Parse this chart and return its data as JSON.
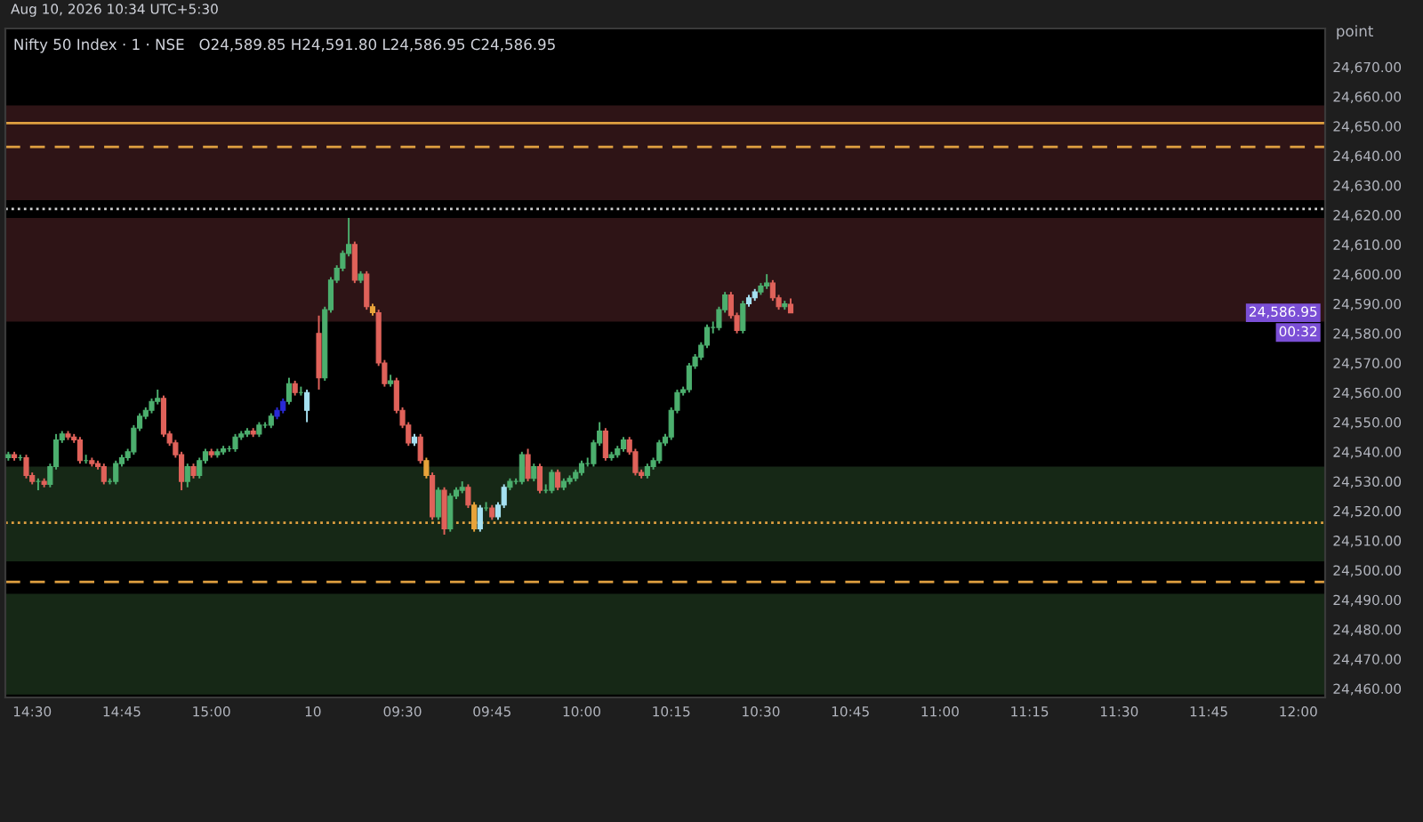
{
  "chart_data": {
    "type": "candlestick",
    "title": "Nifty 50 Index · 1 · NSE   O24,589.85 H24,591.80 L24,586.95 C24,586.95",
    "subtitle": "Aug 10, 2026 10:34 UTC+5:30",
    "ylabel": "point",
    "categories": [
      null,
      null,
      null,
      null,
      "14:30",
      null,
      null,
      null,
      null,
      null,
      null,
      null,
      null,
      null,
      null,
      null,
      null,
      null,
      null,
      "14:45",
      null,
      null,
      null,
      null,
      null,
      null,
      null,
      null,
      null,
      null,
      null,
      null,
      null,
      null,
      "15:00",
      null,
      null,
      null,
      null,
      null,
      null,
      null,
      null,
      null,
      null,
      null,
      null,
      null,
      null,
      null,
      null,
      "10",
      null,
      null,
      null,
      null,
      null,
      null,
      null,
      null,
      null,
      null,
      null,
      null,
      null,
      null,
      "09:30",
      null,
      null,
      null,
      null,
      null,
      null,
      null,
      null,
      null,
      null,
      null,
      null,
      null,
      null,
      "09:45",
      null,
      null,
      null,
      null,
      null,
      null,
      null,
      null,
      null,
      null,
      null,
      null,
      null,
      null,
      "10:00",
      null,
      null,
      null,
      null,
      null,
      null,
      null,
      null,
      null,
      null,
      null,
      null,
      null,
      null,
      "10:15",
      null,
      null,
      null,
      null,
      null,
      null,
      null,
      null,
      null,
      null,
      null,
      null,
      null,
      null,
      "10:30",
      null,
      null,
      null,
      null,
      null,
      null,
      null,
      null,
      null,
      null,
      null,
      null,
      null,
      null,
      "10:45",
      null,
      null,
      null,
      null,
      null,
      null,
      null,
      null,
      null,
      null,
      null,
      null,
      null,
      null,
      "11:00",
      null,
      null,
      null,
      null,
      null,
      null,
      null,
      null,
      null,
      null,
      null,
      null,
      null,
      null,
      "11:15",
      null,
      null,
      null,
      null,
      null,
      null,
      null,
      null,
      null,
      null,
      null,
      null,
      null,
      null,
      "11:30",
      null,
      null,
      null,
      null,
      null,
      null,
      null,
      null,
      null,
      null,
      null,
      null,
      null,
      null,
      "11:45",
      null,
      null,
      null,
      null,
      null,
      null,
      null,
      null,
      null,
      null,
      null,
      null,
      null,
      null,
      "12:00",
      null,
      null,
      null,
      null
    ],
    "ohlc": [
      [
        24538,
        24540,
        24537,
        24539
      ],
      [
        24539,
        24540,
        24537,
        24538
      ],
      [
        24538,
        24539,
        24537,
        24538
      ],
      [
        24538,
        24539,
        24531,
        24532
      ],
      [
        24532,
        24533,
        24529,
        24530
      ],
      [
        24530,
        24531,
        24527,
        24530
      ],
      [
        24530,
        24531,
        24528,
        24529
      ],
      [
        24529,
        24536,
        24528,
        24535
      ],
      [
        24535,
        24546,
        24534,
        24544
      ],
      [
        24544,
        24547,
        24543,
        24546
      ],
      [
        24546,
        24547,
        24544,
        24545
      ],
      [
        24545,
        24546,
        24543,
        24544
      ],
      [
        24544,
        24545,
        24536,
        24537
      ],
      [
        24537,
        24539,
        24536,
        24537
      ],
      [
        24537,
        24538,
        24535,
        24536
      ],
      [
        24536,
        24537,
        24534,
        24535
      ],
      [
        24535,
        24536,
        24529,
        24530
      ],
      [
        24530,
        24531,
        24529,
        24530
      ],
      [
        24530,
        24537,
        24529,
        24536
      ],
      [
        24536,
        24539,
        24535,
        24538
      ],
      [
        24538,
        24541,
        24537,
        24540
      ],
      [
        24540,
        24549,
        24539,
        24548
      ],
      [
        24548,
        24553,
        24547,
        24552
      ],
      [
        24552,
        24555,
        24551,
        24554
      ],
      [
        24554,
        24558,
        24553,
        24557
      ],
      [
        24557,
        24561,
        24556,
        24558
      ],
      [
        24558,
        24559,
        24545,
        24546
      ],
      [
        24546,
        24547,
        24542,
        24543
      ],
      [
        24543,
        24544,
        24538,
        24539
      ],
      [
        24539,
        24540,
        24527,
        24530
      ],
      [
        24530,
        24536,
        24528,
        24535
      ],
      [
        24535,
        24536,
        24531,
        24532
      ],
      [
        24532,
        24538,
        24531,
        24537
      ],
      [
        24537,
        24541,
        24536,
        24540
      ],
      [
        24540,
        24541,
        24538,
        24539
      ],
      [
        24539,
        24541,
        24538,
        24540
      ],
      [
        24540,
        24542,
        24539,
        24541
      ],
      [
        24541,
        24542,
        24540,
        24541
      ],
      [
        24541,
        24546,
        24540,
        24545
      ],
      [
        24545,
        24547,
        24544,
        24546
      ],
      [
        24546,
        24548,
        24545,
        24547
      ],
      [
        24547,
        24548,
        24545,
        24546
      ],
      [
        24546,
        24550,
        24545,
        24549
      ],
      [
        24549,
        24550,
        24548,
        24549
      ],
      [
        24549,
        24553,
        24548,
        24552
      ],
      [
        24552,
        24555,
        24551,
        24554
      ],
      [
        24554,
        24558,
        24553,
        24557
      ],
      [
        24557,
        24565,
        24556,
        24563
      ],
      [
        24563,
        24564,
        24559,
        24560
      ],
      [
        24560,
        24562,
        24559,
        24560
      ],
      [
        24560,
        24561,
        24550,
        24554
      ],
      null,
      [
        24580,
        24586,
        24561,
        24565
      ],
      [
        24565,
        24589,
        24564,
        24588
      ],
      [
        24588,
        24599,
        24587,
        24598
      ],
      [
        24598,
        24603,
        24597,
        24602
      ],
      [
        24602,
        24608,
        24601,
        24607
      ],
      [
        24607,
        24619,
        24606,
        24610
      ],
      [
        24610,
        24611,
        24597,
        24598
      ],
      [
        24598,
        24601,
        24597,
        24600
      ],
      [
        24600,
        24601,
        24588,
        24589
      ],
      [
        24589,
        24590,
        24586,
        24587
      ],
      [
        24587,
        24588,
        24569,
        24570
      ],
      [
        24570,
        24571,
        24562,
        24563
      ],
      [
        24563,
        24566,
        24562,
        24564
      ],
      [
        24564,
        24565,
        24553,
        24554
      ],
      [
        24554,
        24555,
        24548,
        24549
      ],
      [
        24549,
        24550,
        24542,
        24543
      ],
      [
        24543,
        24546,
        24542,
        24545
      ],
      [
        24545,
        24546,
        24536,
        24537
      ],
      [
        24537,
        24538,
        24531,
        24532
      ],
      [
        24532,
        24533,
        24517,
        24518
      ],
      [
        24518,
        24528,
        24517,
        24527
      ],
      [
        24527,
        24528,
        24512,
        24514
      ],
      [
        24514,
        24526,
        24513,
        24525
      ],
      [
        24525,
        24528,
        24524,
        24527
      ],
      [
        24527,
        24530,
        24526,
        24528
      ],
      [
        24528,
        24529,
        24521,
        24522
      ],
      [
        24522,
        24523,
        24513,
        24514
      ],
      [
        24514,
        24522,
        24513,
        24521
      ],
      [
        24521,
        24523,
        24520,
        24521
      ],
      [
        24521,
        24522,
        24517,
        24518
      ],
      [
        24518,
        24523,
        24517,
        24522
      ],
      [
        24522,
        24529,
        24521,
        24528
      ],
      [
        24528,
        24531,
        24527,
        24530
      ],
      [
        24530,
        24531,
        24529,
        24530
      ],
      [
        24530,
        24540,
        24529,
        24539
      ],
      [
        24539,
        24541,
        24530,
        24531
      ],
      [
        24531,
        24536,
        24530,
        24535
      ],
      [
        24535,
        24536,
        24526,
        24527
      ],
      [
        24527,
        24529,
        24526,
        24527
      ],
      [
        24527,
        24534,
        24526,
        24533
      ],
      [
        24533,
        24534,
        24527,
        24528
      ],
      [
        24528,
        24531,
        24527,
        24530
      ],
      [
        24530,
        24532,
        24529,
        24531
      ],
      [
        24531,
        24534,
        24530,
        24533
      ],
      [
        24533,
        24537,
        24532,
        24536
      ],
      [
        24536,
        24538,
        24535,
        24536
      ],
      [
        24536,
        24544,
        24535,
        24543
      ],
      [
        24543,
        24550,
        24542,
        24547
      ],
      [
        24547,
        24548,
        24537,
        24538
      ],
      [
        24538,
        24540,
        24537,
        24539
      ],
      [
        24539,
        24542,
        24538,
        24541
      ],
      [
        24541,
        24545,
        24540,
        24544
      ],
      [
        24544,
        24545,
        24539,
        24540
      ],
      [
        24540,
        24541,
        24532,
        24533
      ],
      [
        24533,
        24534,
        24531,
        24532
      ],
      [
        24532,
        24536,
        24531,
        24535
      ],
      [
        24535,
        24538,
        24534,
        24537
      ],
      [
        24537,
        24544,
        24536,
        24543
      ],
      [
        24543,
        24546,
        24542,
        24545
      ],
      [
        24545,
        24555,
        24544,
        24554
      ],
      [
        24554,
        24561,
        24553,
        24560
      ],
      [
        24560,
        24562,
        24559,
        24561
      ],
      [
        24561,
        24570,
        24560,
        24569
      ],
      [
        24569,
        24573,
        24568,
        24572
      ],
      [
        24572,
        24577,
        24571,
        24576
      ],
      [
        24576,
        24583,
        24575,
        24582
      ],
      [
        24582,
        24584,
        24580,
        24582
      ],
      [
        24582,
        24589,
        24581,
        24588
      ],
      [
        24588,
        24594,
        24587,
        24593
      ],
      [
        24593,
        24594,
        24585,
        24586
      ],
      [
        24586,
        24587,
        24580,
        24581
      ],
      [
        24581,
        24591,
        24580,
        24590
      ],
      [
        24590,
        24593,
        24589,
        24592
      ],
      [
        24592,
        24595,
        24591,
        24594
      ],
      [
        24594,
        24597,
        24593,
        24596
      ],
      [
        24596,
        24600,
        24595,
        24597
      ],
      [
        24597,
        24598,
        24591,
        24592
      ],
      [
        24592,
        24593,
        24588,
        24589
      ],
      [
        24589,
        24591,
        24588,
        24590
      ],
      [
        24589.85,
        24591.8,
        24586.95,
        24586.95
      ],
      null,
      null,
      null,
      null,
      null,
      null,
      null,
      null,
      null,
      null,
      null,
      null,
      null,
      null,
      null,
      null,
      null,
      null,
      null,
      null,
      null,
      null,
      null,
      null,
      null,
      null,
      null,
      null,
      null,
      null,
      null,
      null,
      null,
      null,
      null,
      null,
      null,
      null,
      null,
      null,
      null,
      null,
      null,
      null,
      null,
      null,
      null,
      null,
      null,
      null,
      null,
      null,
      null,
      null,
      null,
      null,
      null,
      null,
      null,
      null,
      null,
      null,
      null,
      null,
      null,
      null,
      null,
      null,
      null,
      null,
      null,
      null,
      null,
      null,
      null,
      null,
      null,
      null,
      null,
      null,
      null,
      null,
      null,
      null,
      null,
      null,
      null,
      null,
      null
    ],
    "colors": [
      "#4caf6e",
      "#e0625a",
      "#4caf6e",
      "#e0625a",
      "#e0625a",
      "#4caf6e",
      "#e0625a",
      "#4caf6e",
      "#4caf6e",
      "#4caf6e",
      "#e0625a",
      "#e0625a",
      "#e0625a",
      "#4caf6e",
      "#e0625a",
      "#e0625a",
      "#e0625a",
      "#4caf6e",
      "#4caf6e",
      "#4caf6e",
      "#4caf6e",
      "#4caf6e",
      "#4caf6e",
      "#4caf6e",
      "#4caf6e",
      "#4caf6e",
      "#e0625a",
      "#e0625a",
      "#e0625a",
      "#e0625a",
      "#4caf6e",
      "#e0625a",
      "#4caf6e",
      "#4caf6e",
      "#e0625a",
      "#4caf6e",
      "#4caf6e",
      "#4caf6e",
      "#4caf6e",
      "#4caf6e",
      "#4caf6e",
      "#e0625a",
      "#4caf6e",
      "#4caf6e",
      "#4caf6e",
      "#2a2ad6",
      "#2a2ad6",
      "#4caf6e",
      "#e0625a",
      "#4caf6e",
      "#a6e1f2",
      null,
      "#e0625a",
      "#4caf6e",
      "#4caf6e",
      "#4caf6e",
      "#4caf6e",
      "#4caf6e",
      "#e0625a",
      "#4caf6e",
      "#e0625a",
      "#e8a33a",
      "#e0625a",
      "#e0625a",
      "#4caf6e",
      "#e0625a",
      "#e0625a",
      "#e0625a",
      "#a6e1f2",
      "#e0625a",
      "#e8a33a",
      "#e0625a",
      "#4caf6e",
      "#e0625a",
      "#4caf6e",
      "#4caf6e",
      "#4caf6e",
      "#e0625a",
      "#e8a33a",
      "#a6e1f2",
      "#4caf6e",
      "#e0625a",
      "#a6e1f2",
      "#a6e1f2",
      "#4caf6e",
      "#4caf6e",
      "#4caf6e",
      "#e0625a",
      "#4caf6e",
      "#e0625a",
      "#4caf6e",
      "#4caf6e",
      "#e0625a",
      "#4caf6e",
      "#4caf6e",
      "#4caf6e",
      "#4caf6e",
      "#4caf6e",
      "#4caf6e",
      "#4caf6e",
      "#e0625a",
      "#4caf6e",
      "#4caf6e",
      "#4caf6e",
      "#e0625a",
      "#e0625a",
      "#e0625a",
      "#4caf6e",
      "#4caf6e",
      "#4caf6e",
      "#4caf6e",
      "#4caf6e",
      "#4caf6e",
      "#4caf6e",
      "#4caf6e",
      "#4caf6e",
      "#4caf6e",
      "#4caf6e",
      "#4caf6e",
      "#4caf6e",
      "#4caf6e",
      "#e0625a",
      "#e0625a",
      "#4caf6e",
      "#a6e1f2",
      "#a6e1f2",
      "#4caf6e",
      "#4caf6e",
      "#e0625a",
      "#e0625a",
      "#4caf6e",
      "#e0625a",
      null,
      null,
      null,
      null,
      null,
      null,
      null,
      null,
      null,
      null,
      null,
      null,
      null,
      null,
      null,
      null,
      null,
      null,
      null,
      null,
      null,
      null,
      null,
      null,
      null,
      null,
      null,
      null,
      null,
      null,
      null,
      null,
      null,
      null,
      null,
      null,
      null,
      null,
      null,
      null,
      null,
      null,
      null,
      null,
      null,
      null,
      null,
      null,
      null,
      null,
      null,
      null,
      null,
      null,
      null,
      null,
      null,
      null,
      null,
      null,
      null,
      null,
      null,
      null,
      null,
      null,
      null,
      null,
      null,
      null,
      null,
      null,
      null,
      null,
      null,
      null,
      null,
      null,
      null,
      null,
      null,
      null,
      null,
      null,
      null,
      null,
      null,
      null,
      null
    ],
    "ylim": [
      24457,
      24683
    ],
    "yticks": [
      {
        "value": 24460,
        "label": "24,460.00"
      },
      {
        "value": 24470,
        "label": "24,470.00"
      },
      {
        "value": 24480,
        "label": "24,480.00"
      },
      {
        "value": 24490,
        "label": "24,490.00"
      },
      {
        "value": 24500,
        "label": "24,500.00"
      },
      {
        "value": 24510,
        "label": "24,510.00"
      },
      {
        "value": 24520,
        "label": "24,520.00"
      },
      {
        "value": 24530,
        "label": "24,530.00"
      },
      {
        "value": 24540,
        "label": "24,540.00"
      },
      {
        "value": 24550,
        "label": "24,550.00"
      },
      {
        "value": 24560,
        "label": "24,560.00"
      },
      {
        "value": 24570,
        "label": "24,570.00"
      },
      {
        "value": 24580,
        "label": "24,580.00"
      },
      {
        "value": 24590,
        "label": "24,590.00"
      },
      {
        "value": 24600,
        "label": "24,600.00"
      },
      {
        "value": 24610,
        "label": "24,610.00"
      },
      {
        "value": 24620,
        "label": "24,620.00"
      },
      {
        "value": 24630,
        "label": "24,630.00"
      },
      {
        "value": 24640,
        "label": "24,640.00"
      },
      {
        "value": 24650,
        "label": "24,650.00"
      },
      {
        "value": 24660,
        "label": "24,660.00"
      },
      {
        "value": 24670,
        "label": "24,670.00"
      }
    ],
    "bands": [
      {
        "axis": "y",
        "from": 24625,
        "to": 24657,
        "color": "#2e1416"
      },
      {
        "axis": "y",
        "from": 24584,
        "to": 24619,
        "color": "#2e1416"
      },
      {
        "axis": "y",
        "from": 24503,
        "to": 24535,
        "color": "#162816"
      },
      {
        "axis": "y",
        "from": 24458,
        "to": 24492,
        "color": "#162816"
      }
    ],
    "ref_lines": [
      {
        "axis": "y",
        "value": 24651,
        "color": "#e0a040",
        "line_style": "solid"
      },
      {
        "axis": "y",
        "value": 24643,
        "color": "#e0a040",
        "line_style": "dashed"
      },
      {
        "axis": "y",
        "value": 24622,
        "color": "#d0d0d0",
        "line_style": "dotted"
      },
      {
        "axis": "y",
        "value": 24516,
        "color": "#e0a040",
        "line_style": "dotted"
      },
      {
        "axis": "y",
        "value": 24496,
        "color": "#e0a040",
        "line_style": "dashed"
      }
    ],
    "annotations": [
      "24,586.95",
      "00:32"
    ]
  }
}
